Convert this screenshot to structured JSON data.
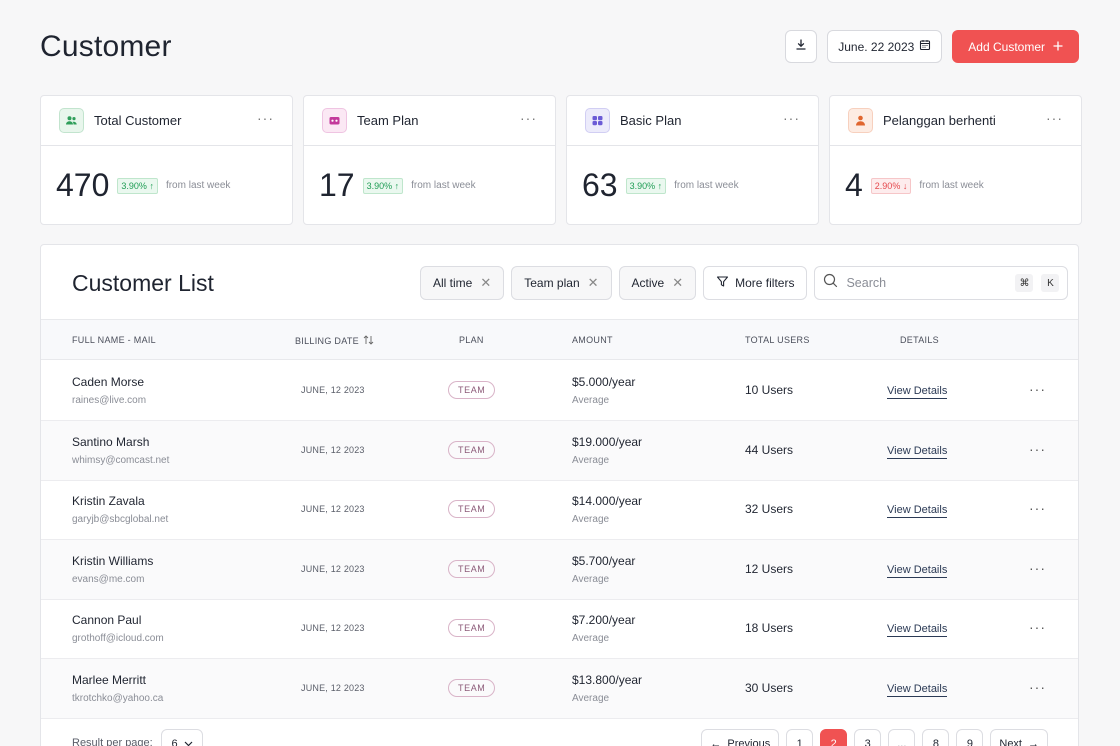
{
  "header": {
    "title": "Customer",
    "date": "June. 22 2023",
    "add_label": "Add Customer",
    "download_icon": "download-icon",
    "calendar_icon": "calendar-icon"
  },
  "stats": [
    {
      "label": "Total  Customer",
      "value": "470",
      "change": "3.90%",
      "direction": "up",
      "note": "from last week",
      "icon": "users-icon",
      "icon_color": "#2f9e5a",
      "icon_bg": "#e8f6ec"
    },
    {
      "label": "Team Plan",
      "value": "17",
      "change": "3.90%",
      "direction": "up",
      "note": "from last week",
      "icon": "team-plan-icon",
      "icon_color": "#c3399b",
      "icon_bg": "#fbe8f4"
    },
    {
      "label": "Basic Plan",
      "value": "63",
      "change": "3.90%",
      "direction": "up",
      "note": "from last week",
      "icon": "basic-plan-icon",
      "icon_color": "#6b5bd6",
      "icon_bg": "#ecebfb"
    },
    {
      "label": "Pelanggan berhenti",
      "value": "4",
      "change": "2.90%",
      "direction": "down",
      "note": "from last week",
      "icon": "user-stop-icon",
      "icon_color": "#e0662f",
      "icon_bg": "#fdece3"
    }
  ],
  "list": {
    "title": "Customer List",
    "filters": [
      "All time",
      "Team plan",
      "Active"
    ],
    "more_filters": "More filters",
    "search_placeholder": "Search",
    "shortcut_1": "⌘",
    "shortcut_2": "K",
    "columns": [
      "FULL NAME - MAIL",
      "BILLING DATE",
      "PLAN",
      "AMOUNT",
      "TOTAL USERS",
      "DETAILS"
    ],
    "rows": [
      {
        "name": "Caden Morse",
        "mail": "raines@live.com",
        "date": "JUNE, 12 2023",
        "plan": "TEAM",
        "amount": "$5.000/year",
        "amount_note": "Average",
        "users": "10 Users",
        "details": "View Details"
      },
      {
        "name": "Santino Marsh",
        "mail": "whimsy@comcast.net",
        "date": "JUNE, 12 2023",
        "plan": "TEAM",
        "amount": "$19.000/year",
        "amount_note": "Average",
        "users": "44 Users",
        "details": "View Details"
      },
      {
        "name": "Kristin Zavala",
        "mail": "garyjb@sbcglobal.net",
        "date": "JUNE, 12 2023",
        "plan": "TEAM",
        "amount": "$14.000/year",
        "amount_note": "Average",
        "users": "32 Users",
        "details": "View Details"
      },
      {
        "name": "Kristin Williams",
        "mail": "evans@me.com",
        "date": "JUNE, 12 2023",
        "plan": "TEAM",
        "amount": "$5.700/year",
        "amount_note": "Average",
        "users": "12 Users",
        "details": "View Details"
      },
      {
        "name": "Cannon Paul",
        "mail": "grothoff@icloud.com",
        "date": "JUNE, 12 2023",
        "plan": "TEAM",
        "amount": "$7.200/year",
        "amount_note": "Average",
        "users": "18 Users",
        "details": "View Details"
      },
      {
        "name": "Marlee Merritt",
        "mail": "tkrotchko@yahoo.ca",
        "date": "JUNE, 12 2023",
        "plan": "TEAM",
        "amount": "$13.800/year",
        "amount_note": "Average",
        "users": "30 Users",
        "details": "View Details"
      }
    ],
    "footer": {
      "rpp_label": "Result per page:",
      "rpp_value": "6",
      "prev": "Previous",
      "next": "Next",
      "pages": [
        "1",
        "2",
        "3",
        "...",
        "8",
        "9"
      ],
      "active_page": "2"
    }
  },
  "colors": {
    "accent": "#f05252",
    "up": "#1f9d55",
    "down": "#e5484d"
  }
}
